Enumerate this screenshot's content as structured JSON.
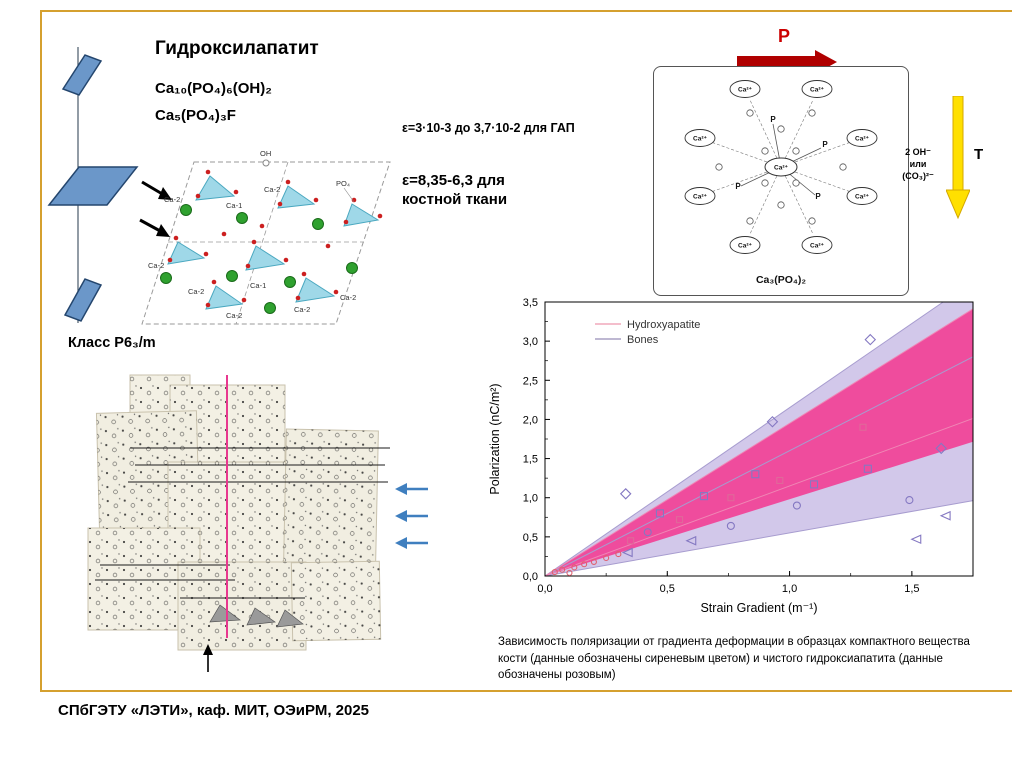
{
  "slide": {
    "title": "Гидроксилапатит",
    "formulas": [
      "Ca₁₀(PO₄)₆(OH)₂",
      "Ca₅(PO₄)₃F"
    ],
    "crystal_class": "Класс P6₃/m",
    "epsilon_line1": "ε=3·10-3 до 3,7·10-2 для ГАП",
    "epsilon_line2": "ε=8,35-6,3 для костной ткани",
    "caption": "Зависимость поляризации от градиента деформации в образцах компактного вещества кости (данные обозначены сиреневым цветом) и чистого гидроксиапатита (данные обозначены розовым)",
    "footer": "СПбГЭТУ «ЛЭТИ», каф. МИТ, ОЭиРМ, 2025"
  },
  "crystal_diagram": {
    "labels": [
      "OH",
      "Ca-2",
      "Ca-1",
      "Ca-2",
      "PO₄",
      "Ca-2",
      "Ca-2",
      "Ca-1",
      "Ca-2",
      "Ca-2",
      "Ca-2"
    ]
  },
  "molecule_diagram": {
    "center_label": "Ca²⁺",
    "ca_label": "Ca²⁺",
    "p_label": "P",
    "caption": "Ca₃(PO₄)₂",
    "arrow_p_label": "P",
    "arrow_t_label": "T",
    "side_note": [
      "2 OH⁻",
      "или",
      "(CO₃)²⁻"
    ]
  },
  "colors": {
    "frame_gold": "#d5a02f",
    "deco_blue": "#6b97c9",
    "p_arrow_red": "#b00000",
    "t_arrow_yellow": "#ffe000",
    "magenta_axis": "#e8388f",
    "mosaic_arrow_blue": "#3f7fbf"
  },
  "chart_data": {
    "type": "scatter",
    "title": "",
    "xlabel": "Strain Gradient (m⁻¹)",
    "ylabel": "Polarization (nC/m²)",
    "xlim": [
      0,
      1.75
    ],
    "ylim": [
      0,
      3.5
    ],
    "grid": false,
    "legend_position": "top-left",
    "xticks": {
      "values": [
        0,
        0.5,
        1.0,
        1.5
      ],
      "labels": [
        "0,0",
        "0,5",
        "1,0",
        "1,5"
      ]
    },
    "yticks": {
      "values": [
        0,
        0.5,
        1.0,
        1.5,
        2.0,
        2.5,
        3.0,
        3.5
      ],
      "labels": [
        "0,0",
        "0,5",
        "1,0",
        "1,5",
        "2,0",
        "2,5",
        "3,0",
        "3,5"
      ]
    },
    "legend": [
      {
        "label": "Hydroxyapatite",
        "color": "#f0a8bc"
      },
      {
        "label": "Bones",
        "color": "#a8a0c4"
      }
    ],
    "bands": [
      {
        "name": "bones-confidence-band",
        "color": "#cdc2e8",
        "opacity": 0.9,
        "upper_slope": 2.15,
        "lower_slope": 0.55
      },
      {
        "name": "hydroxyapatite-confidence-band",
        "color": "#f5368f",
        "opacity": 0.85,
        "upper_slope": 1.95,
        "lower_slope": 0.98
      }
    ],
    "fan_lines": [
      {
        "slope": 2.15,
        "color": "#a79ccf"
      },
      {
        "slope": 1.6,
        "color": "#a79ccf"
      },
      {
        "slope": 0.55,
        "color": "#a79ccf"
      },
      {
        "slope": 1.95,
        "color": "#ef87b5"
      },
      {
        "slope": 1.15,
        "color": "#ef87b5"
      }
    ],
    "series": [
      {
        "name": "Bones",
        "marker": "diamond",
        "color": "#8478c2",
        "size": 8,
        "points": [
          [
            0.33,
            1.05
          ],
          [
            0.93,
            1.97
          ],
          [
            1.33,
            3.02
          ],
          [
            1.62,
            1.63
          ]
        ]
      },
      {
        "name": "Bones",
        "marker": "square",
        "color": "#8478c2",
        "size": 7,
        "points": [
          [
            0.47,
            0.8
          ],
          [
            0.65,
            1.02
          ],
          [
            0.86,
            1.3
          ],
          [
            1.1,
            1.17
          ],
          [
            1.32,
            1.37
          ]
        ]
      },
      {
        "name": "Bones",
        "marker": "circle",
        "color": "#8478c2",
        "size": 7,
        "points": [
          [
            0.42,
            0.56
          ],
          [
            0.76,
            0.64
          ],
          [
            1.03,
            0.9
          ],
          [
            1.49,
            0.97
          ]
        ]
      },
      {
        "name": "Bones",
        "marker": "triangle-left",
        "color": "#8478c2",
        "size": 8,
        "points": [
          [
            0.34,
            0.3
          ],
          [
            0.6,
            0.45
          ],
          [
            1.52,
            0.47
          ],
          [
            1.64,
            0.77
          ]
        ]
      },
      {
        "name": "Hydroxyapatite",
        "marker": "circle",
        "color": "#e0606e",
        "size": 5,
        "points": [
          [
            0.04,
            0.05
          ],
          [
            0.07,
            0.08
          ],
          [
            0.1,
            0.04
          ],
          [
            0.12,
            0.11
          ],
          [
            0.16,
            0.15
          ],
          [
            0.2,
            0.18
          ],
          [
            0.25,
            0.23
          ],
          [
            0.3,
            0.28
          ]
        ]
      },
      {
        "name": "Hydroxyapatite",
        "marker": "square",
        "color": "#e0689a",
        "size": 6,
        "points": [
          [
            0.35,
            0.45
          ],
          [
            0.55,
            0.72
          ],
          [
            0.76,
            1.0
          ],
          [
            0.96,
            1.22
          ],
          [
            1.3,
            1.9
          ]
        ]
      }
    ]
  }
}
